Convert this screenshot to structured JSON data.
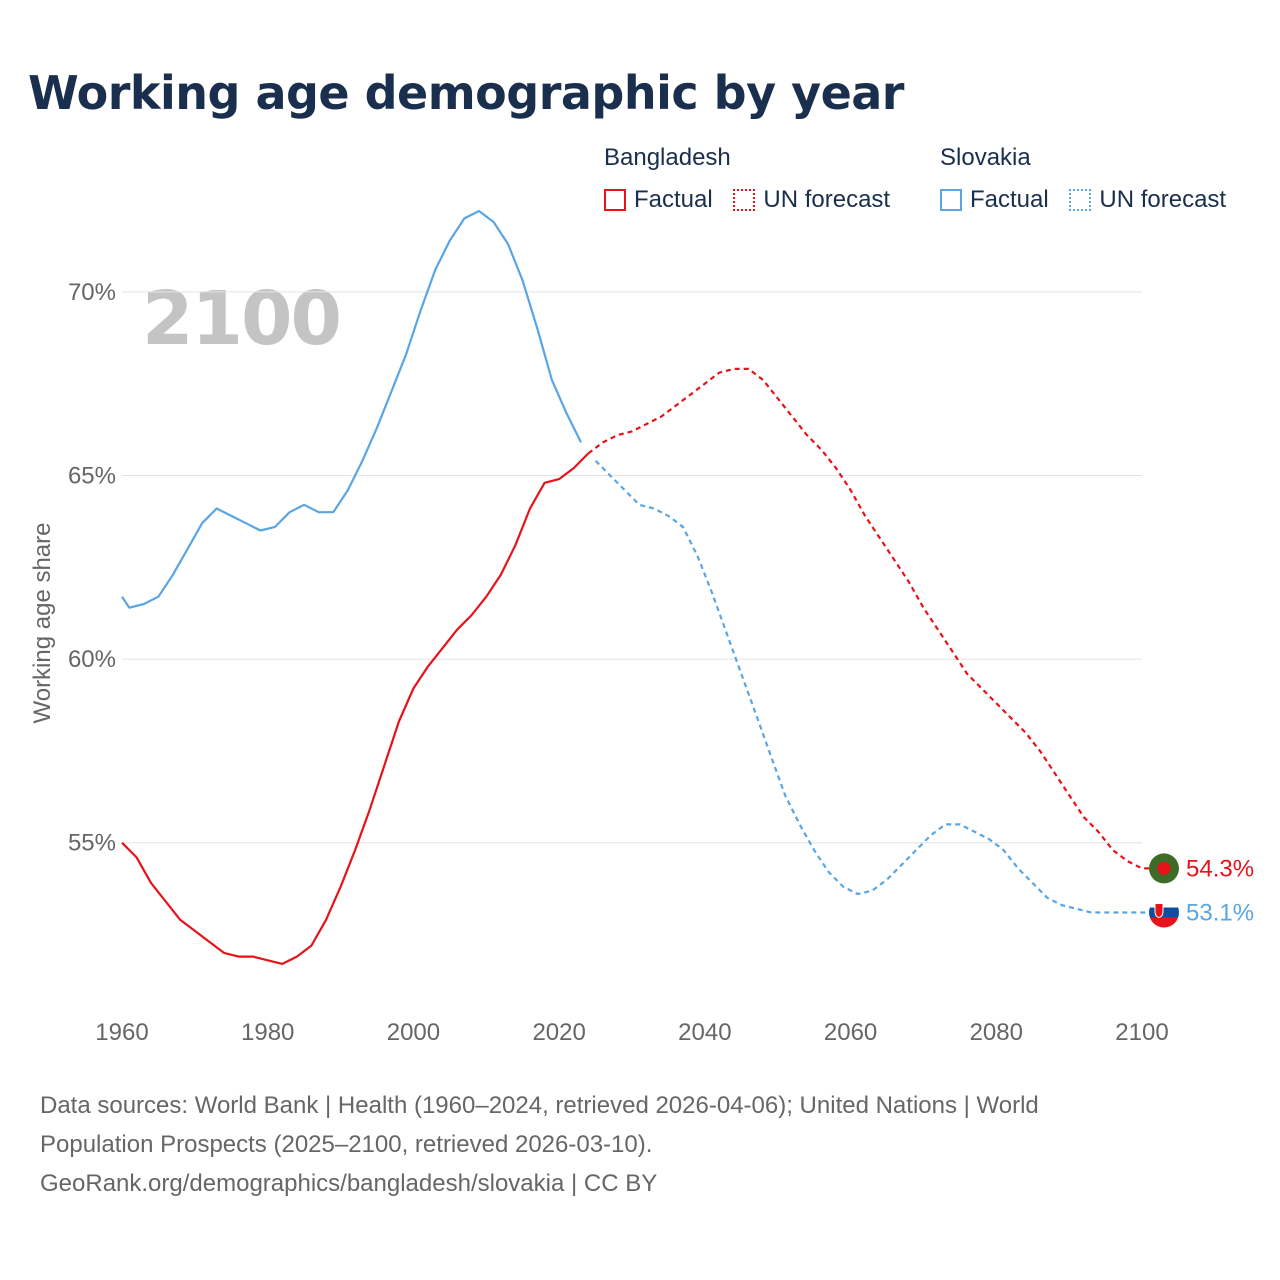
{
  "title": "Working age demographic by year",
  "year_watermark": "2100",
  "legend": {
    "groups": [
      {
        "name": "Bangladesh",
        "color": "#e8121a",
        "factual_label": "Factual",
        "forecast_label": "UN forecast"
      },
      {
        "name": "Slovakia",
        "color": "#5aa5e4",
        "factual_label": "Factual",
        "forecast_label": "UN forecast"
      }
    ]
  },
  "footer": {
    "line1": "Data sources: World Bank | Health (1960–2024, retrieved 2026-04-06); United Nations | World",
    "line2": "Population Prospects (2025–2100, retrieved 2026-03-10).",
    "line3": "GeoRank.org/demographics/bangladesh/slovakia | CC BY"
  },
  "chart_data": {
    "type": "line",
    "title": "Working age demographic by year",
    "xlabel": "",
    "ylabel": "Working age share",
    "xlim": [
      1960,
      2100
    ],
    "ylim": [
      50.5,
      72.5
    ],
    "x_ticks": [
      1960,
      1980,
      2000,
      2020,
      2040,
      2060,
      2080,
      2100
    ],
    "y_ticks": [
      55,
      60,
      65,
      70
    ],
    "y_tick_suffix": "%",
    "grid": true,
    "factual_end_year": 2024,
    "series": [
      {
        "name": "Bangladesh",
        "color": "#e8121a",
        "end_label": "54.3%",
        "flag": "bangladesh",
        "points": [
          [
            1960,
            55.0
          ],
          [
            1962,
            54.6
          ],
          [
            1964,
            53.9
          ],
          [
            1966,
            53.4
          ],
          [
            1968,
            52.9
          ],
          [
            1970,
            52.6
          ],
          [
            1972,
            52.3
          ],
          [
            1974,
            52.0
          ],
          [
            1976,
            51.9
          ],
          [
            1978,
            51.9
          ],
          [
            1980,
            51.8
          ],
          [
            1982,
            51.7
          ],
          [
            1984,
            51.9
          ],
          [
            1986,
            52.2
          ],
          [
            1988,
            52.9
          ],
          [
            1990,
            53.8
          ],
          [
            1992,
            54.8
          ],
          [
            1994,
            55.9
          ],
          [
            1996,
            57.1
          ],
          [
            1998,
            58.3
          ],
          [
            2000,
            59.2
          ],
          [
            2002,
            59.8
          ],
          [
            2004,
            60.3
          ],
          [
            2006,
            60.8
          ],
          [
            2008,
            61.2
          ],
          [
            2010,
            61.7
          ],
          [
            2012,
            62.3
          ],
          [
            2014,
            63.1
          ],
          [
            2016,
            64.1
          ],
          [
            2018,
            64.8
          ],
          [
            2020,
            64.9
          ],
          [
            2022,
            65.2
          ],
          [
            2024,
            65.6
          ],
          [
            2026,
            65.9
          ],
          [
            2028,
            66.1
          ],
          [
            2030,
            66.2
          ],
          [
            2032,
            66.4
          ],
          [
            2034,
            66.6
          ],
          [
            2036,
            66.9
          ],
          [
            2038,
            67.2
          ],
          [
            2040,
            67.5
          ],
          [
            2042,
            67.8
          ],
          [
            2044,
            67.9
          ],
          [
            2046,
            67.9
          ],
          [
            2048,
            67.6
          ],
          [
            2050,
            67.1
          ],
          [
            2052,
            66.6
          ],
          [
            2054,
            66.1
          ],
          [
            2056,
            65.7
          ],
          [
            2058,
            65.2
          ],
          [
            2060,
            64.6
          ],
          [
            2062,
            63.9
          ],
          [
            2064,
            63.3
          ],
          [
            2066,
            62.7
          ],
          [
            2068,
            62.1
          ],
          [
            2070,
            61.4
          ],
          [
            2072,
            60.8
          ],
          [
            2074,
            60.2
          ],
          [
            2076,
            59.6
          ],
          [
            2078,
            59.2
          ],
          [
            2080,
            58.8
          ],
          [
            2082,
            58.4
          ],
          [
            2084,
            58.0
          ],
          [
            2086,
            57.5
          ],
          [
            2088,
            56.9
          ],
          [
            2090,
            56.3
          ],
          [
            2092,
            55.7
          ],
          [
            2094,
            55.3
          ],
          [
            2096,
            54.8
          ],
          [
            2098,
            54.5
          ],
          [
            2100,
            54.3
          ]
        ]
      },
      {
        "name": "Slovakia",
        "color": "#5aa5e4",
        "end_label": "53.1%",
        "flag": "slovakia",
        "points": [
          [
            1960,
            61.7
          ],
          [
            1961,
            61.4
          ],
          [
            1963,
            61.5
          ],
          [
            1965,
            61.7
          ],
          [
            1967,
            62.3
          ],
          [
            1969,
            63.0
          ],
          [
            1971,
            63.7
          ],
          [
            1973,
            64.1
          ],
          [
            1975,
            63.9
          ],
          [
            1977,
            63.7
          ],
          [
            1979,
            63.5
          ],
          [
            1981,
            63.6
          ],
          [
            1983,
            64.0
          ],
          [
            1985,
            64.2
          ],
          [
            1987,
            64.0
          ],
          [
            1989,
            64.0
          ],
          [
            1991,
            64.6
          ],
          [
            1993,
            65.4
          ],
          [
            1995,
            66.3
          ],
          [
            1997,
            67.3
          ],
          [
            1999,
            68.3
          ],
          [
            2001,
            69.5
          ],
          [
            2003,
            70.6
          ],
          [
            2005,
            71.4
          ],
          [
            2007,
            72.0
          ],
          [
            2009,
            72.2
          ],
          [
            2011,
            71.9
          ],
          [
            2013,
            71.3
          ],
          [
            2015,
            70.3
          ],
          [
            2017,
            69.0
          ],
          [
            2019,
            67.6
          ],
          [
            2021,
            66.7
          ],
          [
            2023,
            65.9
          ],
          [
            2025,
            65.4
          ],
          [
            2027,
            65.0
          ],
          [
            2029,
            64.6
          ],
          [
            2031,
            64.2
          ],
          [
            2033,
            64.1
          ],
          [
            2035,
            63.9
          ],
          [
            2037,
            63.6
          ],
          [
            2039,
            62.8
          ],
          [
            2041,
            61.8
          ],
          [
            2043,
            60.7
          ],
          [
            2045,
            59.6
          ],
          [
            2047,
            58.5
          ],
          [
            2049,
            57.4
          ],
          [
            2051,
            56.3
          ],
          [
            2053,
            55.5
          ],
          [
            2055,
            54.8
          ],
          [
            2057,
            54.2
          ],
          [
            2059,
            53.8
          ],
          [
            2061,
            53.6
          ],
          [
            2063,
            53.7
          ],
          [
            2065,
            54.0
          ],
          [
            2067,
            54.4
          ],
          [
            2069,
            54.8
          ],
          [
            2071,
            55.2
          ],
          [
            2073,
            55.5
          ],
          [
            2075,
            55.5
          ],
          [
            2077,
            55.3
          ],
          [
            2079,
            55.1
          ],
          [
            2081,
            54.8
          ],
          [
            2083,
            54.3
          ],
          [
            2085,
            53.9
          ],
          [
            2087,
            53.5
          ],
          [
            2089,
            53.3
          ],
          [
            2091,
            53.2
          ],
          [
            2093,
            53.1
          ],
          [
            2095,
            53.1
          ],
          [
            2097,
            53.1
          ],
          [
            2099,
            53.1
          ],
          [
            2100,
            53.1
          ]
        ]
      }
    ]
  }
}
